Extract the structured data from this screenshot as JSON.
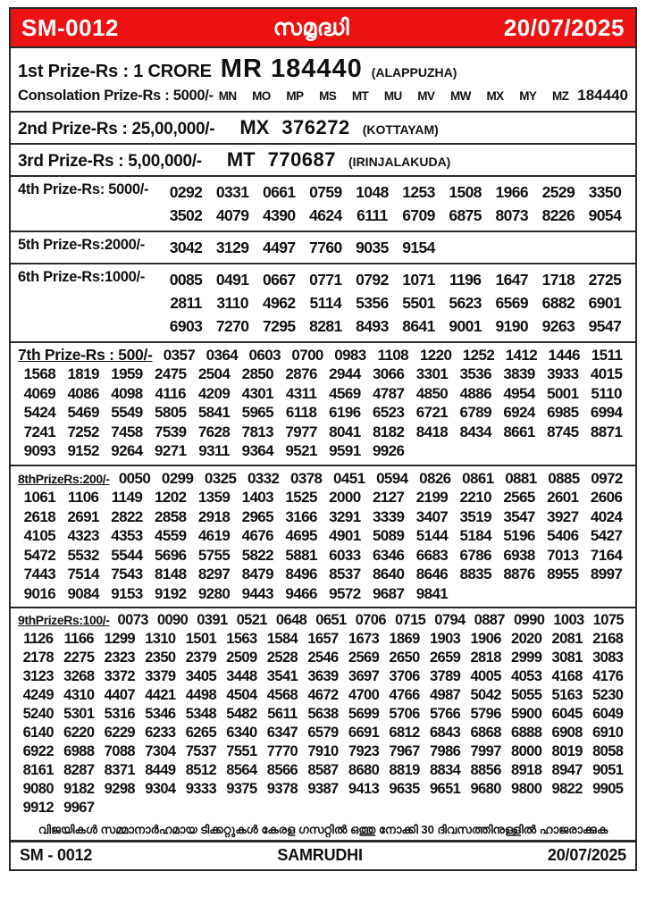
{
  "header": {
    "draw_code": "SM-0012",
    "title_malayalam": "സമൃദ്ധി",
    "date": "20/07/2025"
  },
  "prizes": {
    "first": {
      "label": "1st Prize-Rs : 1 CRORE",
      "ticket": "MR  184440",
      "location": "(ALAPPUZHA)"
    },
    "consolation": {
      "label": "Consolation Prize-Rs : 5000/-",
      "series": [
        "MN",
        "MO",
        "MP",
        "MS",
        "MT",
        "MU",
        "MV",
        "MW",
        "MX",
        "MY",
        "MZ"
      ],
      "number": "184440"
    },
    "second": {
      "label": "2nd Prize-Rs : 25,00,000/-",
      "series": "MX",
      "number": "376272",
      "location": "(KOTTAYAM)"
    },
    "third": {
      "label": "3rd Prize-Rs : 5,00,000/-",
      "series": "MT",
      "number": "770687",
      "location": "(IRINJALAKUDA)"
    },
    "fourth": {
      "label": "4th Prize-Rs: 5000/-",
      "rows": [
        [
          "0292",
          "0331",
          "0661",
          "0759",
          "1048",
          "1253",
          "1508",
          "1966",
          "2529",
          "3350"
        ],
        [
          "3502",
          "4079",
          "4390",
          "4624",
          "6111",
          "6709",
          "6875",
          "8073",
          "8226",
          "9054"
        ]
      ]
    },
    "fifth": {
      "label": "5th Prize-Rs:2000/-",
      "rows": [
        [
          "3042",
          "3129",
          "4497",
          "7760",
          "9035",
          "9154"
        ]
      ]
    },
    "sixth": {
      "label": "6th Prize-Rs:1000/-",
      "rows": [
        [
          "0085",
          "0491",
          "0667",
          "0771",
          "0792",
          "1071",
          "1196",
          "1647",
          "1718",
          "2725"
        ],
        [
          "2811",
          "3110",
          "4962",
          "5114",
          "5356",
          "5501",
          "5623",
          "6569",
          "6882",
          "6901"
        ],
        [
          "6903",
          "7270",
          "7295",
          "8281",
          "8493",
          "8641",
          "9001",
          "9190",
          "9263",
          "9547"
        ]
      ]
    },
    "seventh": {
      "label": "7th Prize-Rs : 500/-",
      "first_row": [
        "0357",
        "0364",
        "0603",
        "0700",
        "0983",
        "1108",
        "1220",
        "1252",
        "1412",
        "1446",
        "1511"
      ],
      "rows": [
        [
          "1568",
          "1819",
          "1959",
          "2475",
          "2504",
          "2850",
          "2876",
          "2944",
          "3066",
          "3301",
          "3536",
          "3839",
          "3933",
          "4015"
        ],
        [
          "4069",
          "4086",
          "4098",
          "4116",
          "4209",
          "4301",
          "4311",
          "4569",
          "4787",
          "4850",
          "4886",
          "4954",
          "5001",
          "5110"
        ],
        [
          "5424",
          "5469",
          "5549",
          "5805",
          "5841",
          "5965",
          "6118",
          "6196",
          "6523",
          "6721",
          "6789",
          "6924",
          "6985",
          "6994"
        ],
        [
          "7241",
          "7252",
          "7458",
          "7539",
          "7628",
          "7813",
          "7977",
          "8041",
          "8182",
          "8418",
          "8434",
          "8661",
          "8745",
          "8871"
        ],
        [
          "9093",
          "9152",
          "9264",
          "9271",
          "9311",
          "9364",
          "9521",
          "9591",
          "9926"
        ]
      ]
    },
    "eighth": {
      "label": "8thPrizeRs:200/-",
      "first_row": [
        "0050",
        "0299",
        "0325",
        "0332",
        "0378",
        "0451",
        "0594",
        "0826",
        "0861",
        "0881",
        "0885",
        "0972"
      ],
      "rows": [
        [
          "1061",
          "1106",
          "1149",
          "1202",
          "1359",
          "1403",
          "1525",
          "2000",
          "2127",
          "2199",
          "2210",
          "2565",
          "2601",
          "2606"
        ],
        [
          "2618",
          "2691",
          "2822",
          "2858",
          "2918",
          "2965",
          "3166",
          "3291",
          "3339",
          "3407",
          "3519",
          "3547",
          "3927",
          "4024"
        ],
        [
          "4105",
          "4323",
          "4353",
          "4559",
          "4619",
          "4676",
          "4695",
          "4901",
          "5089",
          "5144",
          "5184",
          "5196",
          "5406",
          "5427"
        ],
        [
          "5472",
          "5532",
          "5544",
          "5696",
          "5755",
          "5822",
          "5881",
          "6033",
          "6346",
          "6683",
          "6786",
          "6938",
          "7013",
          "7164"
        ],
        [
          "7443",
          "7514",
          "7543",
          "8148",
          "8297",
          "8479",
          "8496",
          "8537",
          "8640",
          "8646",
          "8835",
          "8876",
          "8955",
          "8997"
        ],
        [
          "9016",
          "9084",
          "9153",
          "9192",
          "9280",
          "9443",
          "9466",
          "9572",
          "9687",
          "9841"
        ]
      ]
    },
    "ninth": {
      "label": "9thPrizeRs:100/-",
      "first_row": [
        "0073",
        "0090",
        "0391",
        "0521",
        "0648",
        "0651",
        "0706",
        "0715",
        "0794",
        "0887",
        "0990",
        "1003",
        "1075"
      ],
      "rows": [
        [
          "1126",
          "1166",
          "1299",
          "1310",
          "1501",
          "1563",
          "1584",
          "1657",
          "1673",
          "1869",
          "1903",
          "1906",
          "2020",
          "2081",
          "2168"
        ],
        [
          "2178",
          "2275",
          "2323",
          "2350",
          "2379",
          "2509",
          "2528",
          "2546",
          "2569",
          "2650",
          "2659",
          "2818",
          "2999",
          "3081",
          "3083"
        ],
        [
          "3123",
          "3268",
          "3372",
          "3379",
          "3405",
          "3448",
          "3541",
          "3639",
          "3697",
          "3706",
          "3789",
          "4005",
          "4053",
          "4168",
          "4176"
        ],
        [
          "4249",
          "4310",
          "4407",
          "4421",
          "4498",
          "4504",
          "4568",
          "4672",
          "4700",
          "4766",
          "4987",
          "5042",
          "5055",
          "5163",
          "5230"
        ],
        [
          "5240",
          "5301",
          "5316",
          "5346",
          "5348",
          "5482",
          "5611",
          "5638",
          "5699",
          "5706",
          "5766",
          "5796",
          "5900",
          "6045",
          "6049"
        ],
        [
          "6140",
          "6220",
          "6229",
          "6233",
          "6265",
          "6340",
          "6347",
          "6579",
          "6691",
          "6812",
          "6843",
          "6868",
          "6888",
          "6908",
          "6910"
        ],
        [
          "6922",
          "6988",
          "7088",
          "7304",
          "7537",
          "7551",
          "7770",
          "7910",
          "7923",
          "7967",
          "7986",
          "7997",
          "8000",
          "8019",
          "8058"
        ],
        [
          "8161",
          "8287",
          "8371",
          "8449",
          "8512",
          "8564",
          "8566",
          "8587",
          "8680",
          "8819",
          "8834",
          "8856",
          "8918",
          "8947",
          "9051"
        ],
        [
          "9080",
          "9182",
          "9298",
          "9304",
          "9333",
          "9375",
          "9378",
          "9387",
          "9413",
          "9635",
          "9651",
          "9680",
          "9800",
          "9822",
          "9905"
        ],
        [
          "9912",
          "9967"
        ]
      ]
    }
  },
  "footer": {
    "note_malayalam": "വിജയികൾ സമ്മാനാർഹമായ ടിക്കറ്റുകൾ കേരള ഗസറ്റിൽ ഒത്തു നോക്കി 30 ദിവസത്തിനുള്ളിൽ ഹാജരാക്കുക",
    "draw_code": "SM - 0012",
    "lottery_name": "SAMRUDHI",
    "date": "20/07/2025"
  },
  "colors": {
    "header_red": "#ec1212",
    "border_black": "#2a2a2a"
  }
}
